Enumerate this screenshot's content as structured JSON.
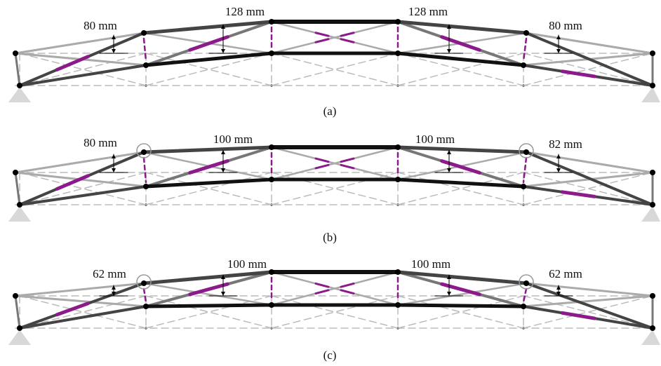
{
  "panels": [
    {
      "caption": "(a)",
      "dimensions": [
        "80 mm",
        "128 mm",
        "128 mm",
        "80 mm"
      ]
    },
    {
      "caption": "(b)",
      "dimensions": [
        "80 mm",
        "100 mm",
        "100 mm",
        "82 mm"
      ]
    },
    {
      "caption": "(c)",
      "dimensions": [
        "62 mm",
        "100 mm",
        "100 mm",
        "62 mm"
      ]
    }
  ]
}
